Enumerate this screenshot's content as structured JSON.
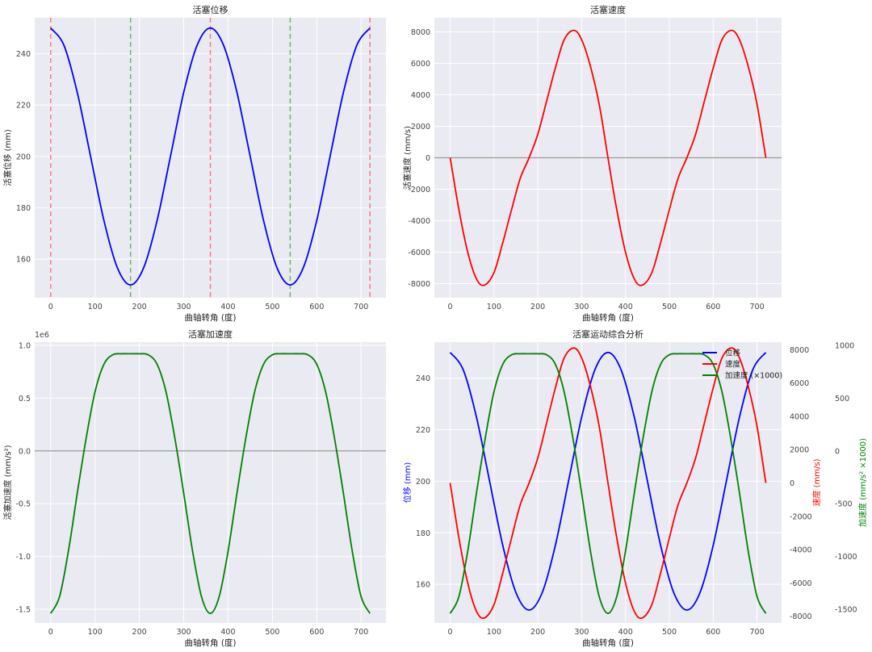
{
  "chart_data": [
    {
      "type": "line",
      "title": "活塞位移",
      "xlabel": "曲轴转角 (度)",
      "ylabel": "活塞位移 (mm)",
      "xlim": [
        -36,
        756
      ],
      "ylim": [
        145,
        254
      ],
      "xticks": [
        "0",
        "100",
        "200",
        "300",
        "400",
        "500",
        "600",
        "700"
      ],
      "yticks": [
        "160",
        "180",
        "200",
        "220",
        "240"
      ],
      "grid": true,
      "series": [
        {
          "color": "#0000ff",
          "x": [
            0,
            30,
            60,
            90,
            120,
            150,
            180,
            210,
            240,
            270,
            300,
            330,
            360,
            390,
            420,
            450,
            480,
            510,
            540,
            570,
            600,
            630,
            660,
            690,
            720
          ],
          "y": [
            250,
            243.2,
            224.9,
            200,
            175.1,
            156.8,
            150,
            156.8,
            175.1,
            200,
            224.9,
            243.2,
            250,
            243.2,
            224.9,
            200,
            175.1,
            156.8,
            150,
            156.8,
            175.1,
            200,
            224.9,
            243.2,
            250
          ]
        }
      ],
      "vlines": [
        {
          "x": 0,
          "color": "#ff6666",
          "style": "dashed"
        },
        {
          "x": 180,
          "color": "#55aa55",
          "style": "dashed"
        },
        {
          "x": 360,
          "color": "#ff6666",
          "style": "dashed"
        },
        {
          "x": 540,
          "color": "#55aa55",
          "style": "dashed"
        },
        {
          "x": 720,
          "color": "#ff6666",
          "style": "dashed"
        }
      ]
    },
    {
      "type": "line",
      "title": "活塞速度",
      "xlabel": "曲轴转角 (度)",
      "ylabel": "活塞速度 (mm/s)",
      "xlim": [
        -36,
        756
      ],
      "ylim": [
        -8900,
        8900
      ],
      "xticks": [
        "0",
        "100",
        "200",
        "300",
        "400",
        "500",
        "600",
        "700"
      ],
      "yticks": [
        "-8000",
        "-6000",
        "-4000",
        "-2000",
        "0",
        "2000",
        "4000",
        "6000",
        "8000"
      ],
      "hline": 0,
      "grid": true,
      "series": [
        {
          "color": "#ff0000",
          "x": [
            0,
            20,
            40,
            60,
            78,
            100,
            120,
            140,
            160,
            180,
            200,
            220,
            240,
            260,
            282,
            300,
            320,
            340,
            360,
            380,
            400,
            420,
            438,
            460,
            480,
            500,
            520,
            540,
            560,
            580,
            600,
            620,
            642,
            660,
            680,
            700,
            720
          ],
          "y": [
            0,
            -3300,
            -6000,
            -7700,
            -8100,
            -7300,
            -5400,
            -3300,
            -1300,
            0,
            1500,
            3600,
            5700,
            7500,
            8100,
            7500,
            5800,
            3400,
            0,
            -3300,
            -6000,
            -7700,
            -8100,
            -7300,
            -5400,
            -3300,
            -1300,
            0,
            1500,
            3600,
            5700,
            7500,
            8100,
            7500,
            5800,
            3400,
            0
          ]
        }
      ]
    },
    {
      "type": "line",
      "title": "活塞加速度",
      "xlabel": "曲轴转角 (度)",
      "ylabel": "活塞加速度 (mm/s²)",
      "offset_label": "1e6",
      "xlim": [
        -36,
        756
      ],
      "ylim": [
        -1.63,
        1.03
      ],
      "xticks": [
        "0",
        "100",
        "200",
        "300",
        "400",
        "500",
        "600",
        "700"
      ],
      "yticks": [
        "-1.5",
        "-1.0",
        "-0.5",
        "0.0",
        "0.5",
        "1.0"
      ],
      "hline": 0,
      "grid": true,
      "series": [
        {
          "color": "#008000",
          "x": [
            0,
            20,
            40,
            60,
            80,
            100,
            120,
            140,
            160,
            180,
            200,
            220,
            240,
            260,
            280,
            300,
            320,
            340,
            360,
            380,
            400,
            420,
            440,
            460,
            480,
            500,
            520,
            540,
            560,
            580,
            600,
            620,
            640,
            660,
            680,
            700,
            720
          ],
          "y": [
            -1.54,
            -1.38,
            -0.95,
            -0.4,
            0.12,
            0.56,
            0.82,
            0.91,
            0.92,
            0.92,
            0.92,
            0.91,
            0.82,
            0.56,
            0.12,
            -0.4,
            -0.95,
            -1.38,
            -1.54,
            -1.38,
            -0.95,
            -0.4,
            0.12,
            0.56,
            0.82,
            0.91,
            0.92,
            0.92,
            0.92,
            0.91,
            0.82,
            0.56,
            0.12,
            -0.4,
            -0.95,
            -1.38,
            -1.54
          ]
        }
      ]
    },
    {
      "type": "line",
      "title": "活塞运动综合分析",
      "xlabel": "曲轴转角 (度)",
      "xlim": [
        -36,
        756
      ],
      "xticks": [
        "0",
        "100",
        "200",
        "300",
        "400",
        "500",
        "600",
        "700"
      ],
      "y_axes": [
        {
          "label": "位移 (mm)",
          "color": "#0000ff",
          "lim": [
            145,
            254
          ],
          "ticks": [
            "160",
            "180",
            "200",
            "220",
            "240"
          ]
        },
        {
          "label": "速度 (mm/s)",
          "color": "#ff0000",
          "lim": [
            -8400,
            8450
          ],
          "ticks": [
            "-8000",
            "-6000",
            "-4000",
            "-2000",
            "0",
            "2000",
            "4000",
            "6000",
            "8000"
          ]
        },
        {
          "label": "加速度 (mm/s² ×1000)",
          "color": "#008000",
          "lim": [
            -1630,
            1030
          ],
          "ticks": [
            "-1500",
            "-1000",
            "-500",
            "0",
            "500",
            "1000"
          ]
        }
      ],
      "legend": {
        "placement": "top-right",
        "entries": [
          "位移",
          "速度",
          "加速度 (×1000)"
        ]
      },
      "grid": true,
      "series": [
        {
          "name": "位移",
          "color": "#0000ff",
          "axis": 0,
          "x": [
            0,
            30,
            60,
            90,
            120,
            150,
            180,
            210,
            240,
            270,
            300,
            330,
            360,
            390,
            420,
            450,
            480,
            510,
            540,
            570,
            600,
            630,
            660,
            690,
            720
          ],
          "y": [
            250,
            243.2,
            224.9,
            200,
            175.1,
            156.8,
            150,
            156.8,
            175.1,
            200,
            224.9,
            243.2,
            250,
            243.2,
            224.9,
            200,
            175.1,
            156.8,
            150,
            156.8,
            175.1,
            200,
            224.9,
            243.2,
            250
          ]
        },
        {
          "name": "速度",
          "color": "#ff0000",
          "axis": 1,
          "x": [
            0,
            20,
            40,
            60,
            78,
            100,
            120,
            140,
            160,
            180,
            200,
            220,
            240,
            260,
            282,
            300,
            320,
            340,
            360,
            380,
            400,
            420,
            438,
            460,
            480,
            500,
            520,
            540,
            560,
            580,
            600,
            620,
            642,
            660,
            680,
            700,
            720
          ],
          "y": [
            0,
            -3300,
            -6000,
            -7700,
            -8100,
            -7300,
            -5400,
            -3300,
            -1300,
            0,
            1500,
            3600,
            5700,
            7500,
            8100,
            7500,
            5800,
            3400,
            0,
            -3300,
            -6000,
            -7700,
            -8100,
            -7300,
            -5400,
            -3300,
            -1300,
            0,
            1500,
            3600,
            5700,
            7500,
            8100,
            7500,
            5800,
            3400,
            0
          ]
        },
        {
          "name": "加速度 (×1000)",
          "color": "#008000",
          "axis": 2,
          "x": [
            0,
            20,
            40,
            60,
            80,
            100,
            120,
            140,
            160,
            180,
            200,
            220,
            240,
            260,
            280,
            300,
            320,
            340,
            360,
            380,
            400,
            420,
            440,
            460,
            480,
            500,
            520,
            540,
            560,
            580,
            600,
            620,
            640,
            660,
            680,
            700,
            720
          ],
          "y": [
            -1540,
            -1380,
            -950,
            -400,
            120,
            560,
            820,
            910,
            920,
            920,
            920,
            910,
            820,
            560,
            120,
            -400,
            -950,
            -1380,
            -1540,
            -1380,
            -950,
            -400,
            120,
            560,
            820,
            910,
            920,
            920,
            920,
            910,
            820,
            560,
            120,
            -400,
            -950,
            -1380,
            -1540
          ]
        }
      ]
    }
  ]
}
